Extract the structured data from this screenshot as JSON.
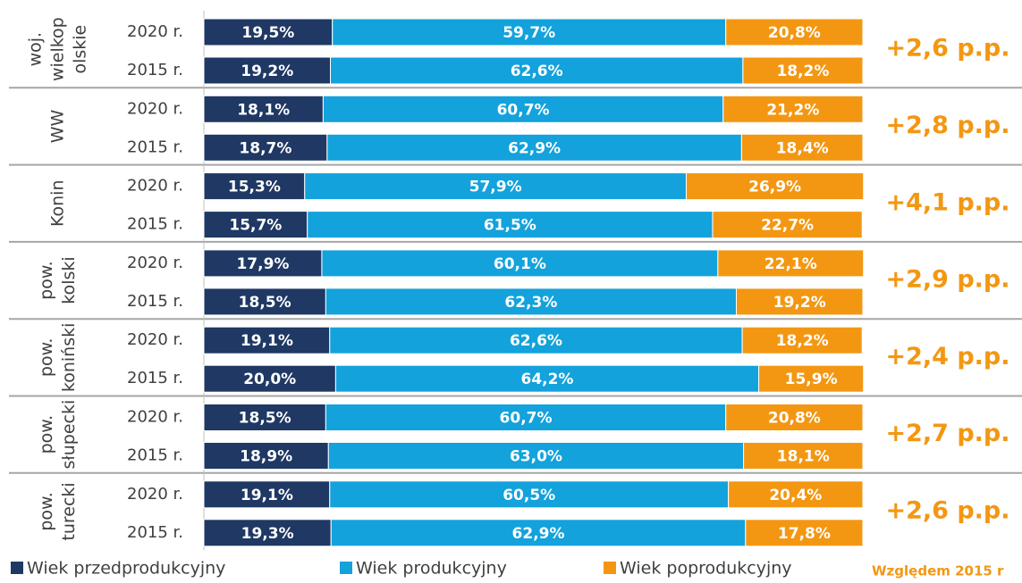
{
  "chart_data": {
    "type": "bar",
    "orientation": "horizontal",
    "stacked": true,
    "xlim": [
      0,
      100
    ],
    "categories": [
      "2020 r.",
      "2015 r.",
      "2020 r.",
      "2015 r.",
      "2020 r.",
      "2015 r.",
      "2020 r.",
      "2015 r.",
      "2020 r.",
      "2015 r.",
      "2020 r.",
      "2015 r.",
      "2020 r.",
      "2015 r."
    ],
    "groups": [
      {
        "label": [
          "woj.",
          "wielkop",
          "olskie"
        ],
        "annotation": "+2,6 p.p."
      },
      {
        "label": [
          "WW"
        ],
        "annotation": "+2,8 p.p."
      },
      {
        "label": [
          "Konin"
        ],
        "annotation": "+4,1 p.p."
      },
      {
        "label": [
          "pow.",
          "kolski"
        ],
        "annotation": "+2,9 p.p."
      },
      {
        "label": [
          "pow.",
          "koniński"
        ],
        "annotation": "+2,4 p.p."
      },
      {
        "label": [
          "pow.",
          "słupecki"
        ],
        "annotation": "+2,7 p.p."
      },
      {
        "label": [
          "pow.",
          "turecki"
        ],
        "annotation": "+2,6 p.p."
      }
    ],
    "series": [
      {
        "name": "Wiek przedprodukcyjny",
        "color": "#1f3864",
        "values": [
          19.5,
          19.2,
          18.1,
          18.7,
          15.3,
          15.7,
          17.9,
          18.5,
          19.1,
          20.0,
          18.5,
          18.9,
          19.1,
          19.3
        ],
        "value_labels": [
          "19,5%",
          "19,2%",
          "18,1%",
          "18,7%",
          "15,3%",
          "15,7%",
          "17,9%",
          "18,5%",
          "19,1%",
          "20,0%",
          "18,5%",
          "18,9%",
          "19,1%",
          "19,3%"
        ]
      },
      {
        "name": "Wiek produkcyjny",
        "color": "#13a2dc",
        "values": [
          59.7,
          62.6,
          60.7,
          62.9,
          57.9,
          61.5,
          60.1,
          62.3,
          62.6,
          64.2,
          60.7,
          63.0,
          60.5,
          62.9
        ],
        "value_labels": [
          "59,7%",
          "62,6%",
          "60,7%",
          "62,9%",
          "57,9%",
          "61,5%",
          "60,1%",
          "62,3%",
          "62,6%",
          "64,2%",
          "60,7%",
          "63,0%",
          "60,5%",
          "62,9%"
        ]
      },
      {
        "name": "Wiek poprodukcyjny",
        "color": "#f39712",
        "values": [
          20.8,
          18.2,
          21.2,
          18.4,
          26.9,
          22.7,
          22.1,
          19.2,
          18.2,
          15.9,
          20.8,
          18.1,
          20.4,
          17.8
        ],
        "value_labels": [
          "20,8%",
          "18,2%",
          "21,2%",
          "18,4%",
          "26,9%",
          "22,7%",
          "22,1%",
          "19,2%",
          "18,2%",
          "15,9%",
          "20,8%",
          "18,1%",
          "20,4%",
          "17,8%"
        ]
      }
    ],
    "footnote": "Względem 2015 r"
  }
}
